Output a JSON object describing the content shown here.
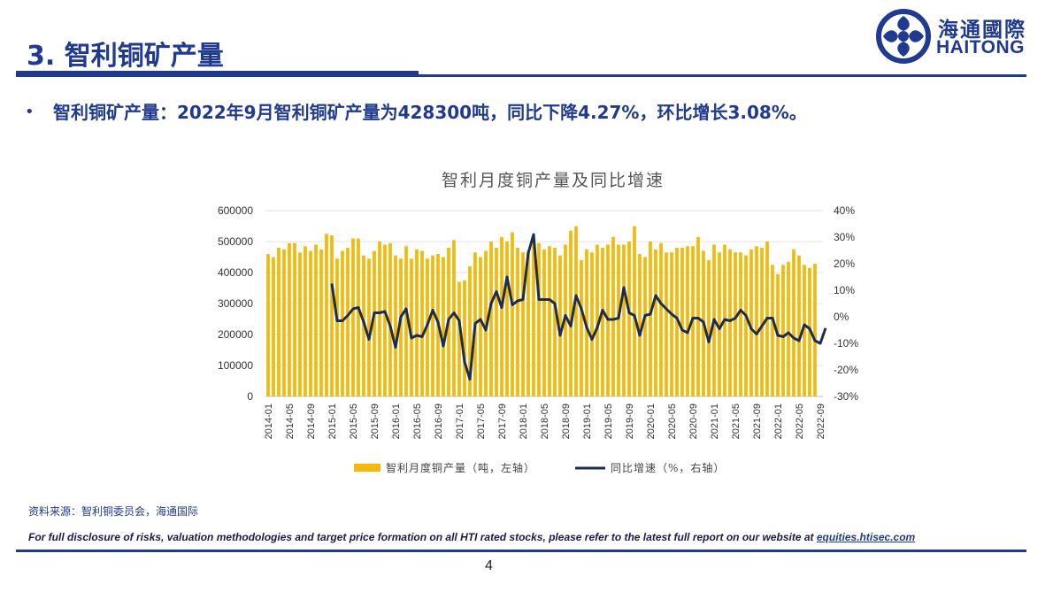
{
  "header": {
    "title": "3. 智利铜矿产量",
    "logo_cn": "海通國際",
    "logo_en": "HAITONG"
  },
  "bullet": {
    "text": "智利铜矿产量：2022年9月智利铜矿产量为428300吨，同比下降4.27%，环比增长3.08%。"
  },
  "footer": {
    "source": "资料来源：智利铜委员会，海通国际",
    "disclosure": "For full disclosure of risks, valuation methodologies and target price formation on all HTI rated stocks, please refer to the latest full report on our website at",
    "link": "equities.htisec.com",
    "page": "4"
  },
  "colors": {
    "bar": "#f5b90a",
    "line": "#1c2e4f",
    "brand": "#1f3a8f"
  },
  "chart_data": {
    "type": "bar",
    "title": "智利月度铜产量及同比增速",
    "x_tick_labels": [
      "2014-01",
      "2014-05",
      "2014-09",
      "2015-01",
      "2015-05",
      "2015-09",
      "2016-01",
      "2016-05",
      "2016-09",
      "2017-01",
      "2017-05",
      "2017-09",
      "2018-01",
      "2018-05",
      "2018-09",
      "2019-01",
      "2019-05",
      "2019-09",
      "2020-01",
      "2020-05",
      "2020-09",
      "2021-01",
      "2021-05",
      "2021-09",
      "2022-01",
      "2022-05",
      "2022-09"
    ],
    "y_left": {
      "ylim": [
        0,
        600000
      ],
      "ticks": [
        "0",
        "100000",
        "200000",
        "300000",
        "400000",
        "500000",
        "600000"
      ]
    },
    "y_right": {
      "ylim": [
        -30,
        40
      ],
      "ticks": [
        "-30%",
        "-20%",
        "-10%",
        "0%",
        "10%",
        "20%",
        "30%",
        "40%"
      ]
    },
    "series": [
      {
        "name": "智利月度铜产量（吨，左轴）",
        "type": "bar",
        "start": "2014-01",
        "values": [
          460000,
          450000,
          480000,
          475000,
          495000,
          495000,
          465000,
          485000,
          470000,
          490000,
          475000,
          525000,
          520000,
          445000,
          470000,
          480000,
          510000,
          510000,
          455000,
          445000,
          470000,
          500000,
          490000,
          495000,
          455000,
          445000,
          485000,
          445000,
          475000,
          470000,
          445000,
          455000,
          460000,
          450000,
          480000,
          505000,
          370000,
          375000,
          420000,
          465000,
          450000,
          470000,
          500000,
          480000,
          515000,
          500000,
          530000,
          480000,
          465000,
          470000,
          505000,
          495000,
          475000,
          485000,
          480000,
          455000,
          490000,
          535000,
          550000,
          440000,
          475000,
          465000,
          490000,
          480000,
          490000,
          515000,
          490000,
          490000,
          500000,
          550000,
          460000,
          450000,
          500000,
          475000,
          495000,
          465000,
          465000,
          480000,
          480000,
          485000,
          485000,
          515000,
          470000,
          440000,
          490000,
          465000,
          490000,
          475000,
          465000,
          465000,
          455000,
          475000,
          485000,
          480000,
          500000,
          425000,
          395000,
          425000,
          435000,
          475000,
          455000,
          425000,
          415000,
          428300
        ]
      },
      {
        "name": "同比增速（%，右轴）",
        "type": "line",
        "start": "2015-01",
        "values": [
          12.5,
          -1.5,
          -1.5,
          0.5,
          3,
          3.5,
          -2,
          -8.5,
          1.5,
          1.5,
          2,
          -3.5,
          -11.5,
          0,
          3,
          -8,
          -7,
          -7.5,
          -3,
          2.5,
          -2,
          -11,
          -1,
          1.5,
          -1.5,
          -17,
          -23.5,
          -2.5,
          -1,
          -5,
          5,
          9.5,
          3.5,
          15,
          4.5,
          6,
          6.5,
          24,
          31,
          6.5,
          6.5,
          6.5,
          5,
          -7,
          0.5,
          -3.5,
          8,
          3,
          -4,
          -8.5,
          -4,
          2.5,
          -1,
          -1,
          -0.5,
          11,
          1.5,
          0.5,
          -7,
          0.5,
          1,
          8,
          5,
          3,
          1,
          -0.5,
          -5,
          -6,
          -0.5,
          -0.5,
          -2,
          -9.5,
          -1,
          -4.5,
          -1,
          -1.5,
          -0.5,
          2.5,
          0.5,
          -4.5,
          -6.5,
          -3.5,
          -0.5,
          -0.5,
          -7,
          -7.5,
          -6,
          -8,
          -9,
          -3,
          -4.5,
          -9,
          -10,
          -4.27
        ]
      }
    ],
    "legend": "bottom"
  }
}
